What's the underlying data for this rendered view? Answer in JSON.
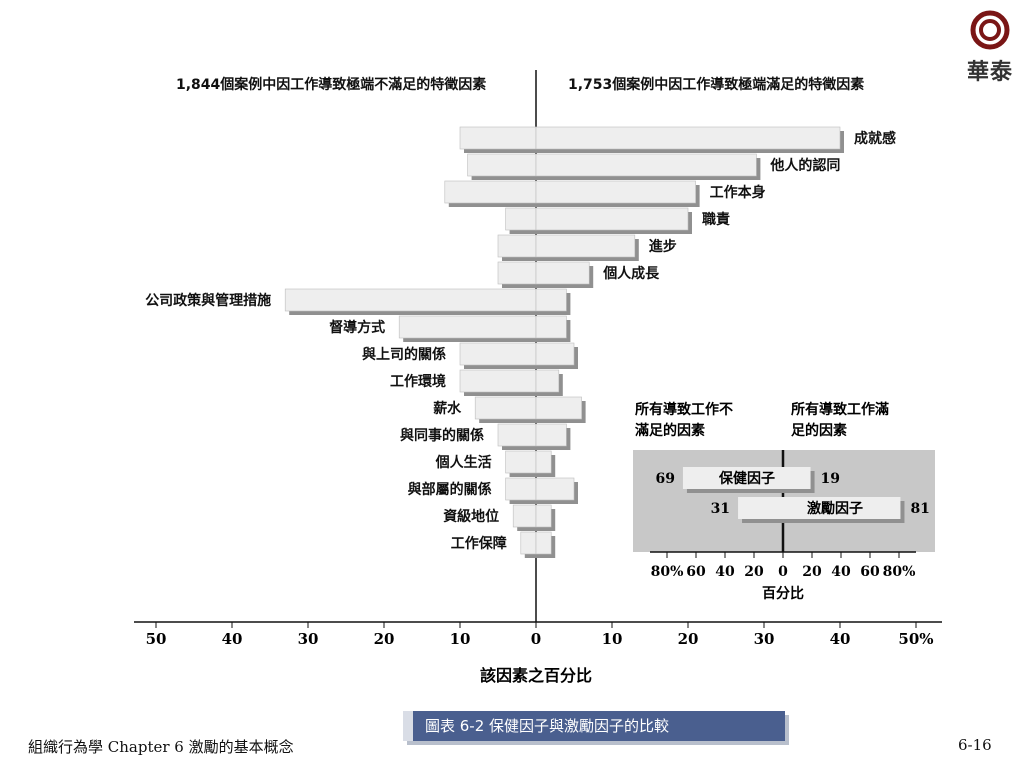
{
  "logo": {
    "text": "華泰",
    "icon": "concentric-ring-logo-icon"
  },
  "footer": {
    "left": "組織行為學 Chapter 6 激勵的基本概念",
    "page": "6-16"
  },
  "caption": "圖表 6-2 保健因子與激勵因子的比較",
  "colors": {
    "bar_fill": "#eeeeee",
    "bar_shadow": "#909090",
    "inset_bg": "#c8c8c8",
    "caption_bg": "#4a5f8f"
  },
  "chart_data": [
    {
      "type": "bar",
      "orientation": "horizontal-diverging",
      "left_title": "1,844個案例中因工作導致極端不滿足的特徵因素",
      "right_title": "1,753個案例中因工作導致極端滿足的特徵因素",
      "xlabel": "該因素之百分比",
      "left_ticks": [
        "50",
        "40",
        "30",
        "20",
        "10"
      ],
      "right_ticks": [
        "0",
        "10",
        "20",
        "30",
        "40",
        "50%"
      ],
      "xlim": [
        0,
        50
      ],
      "right_categories": [
        "成就感",
        "他人的認同",
        "工作本身",
        "職責",
        "進步",
        "個人成長"
      ],
      "left_categories": [
        "公司政策與管理措施",
        "督導方式",
        "與上司的關係",
        "工作環境",
        "薪水",
        "與同事的關係",
        "個人生活",
        "與部屬的關係",
        "資級地位",
        "工作保障"
      ],
      "categories": [
        "成就感",
        "他人的認同",
        "工作本身",
        "職責",
        "進步",
        "個人成長",
        "公司政策與管理措施",
        "督導方式",
        "與上司的關係",
        "工作環境",
        "薪水",
        "與同事的關係",
        "個人生活",
        "與部屬的關係",
        "資級地位",
        "工作保障"
      ],
      "series": [
        {
          "side": "left",
          "values": [
            10,
            9,
            12,
            4,
            5,
            5,
            33,
            18,
            10,
            10,
            8,
            5,
            4,
            4,
            3,
            2
          ]
        },
        {
          "side": "right",
          "values": [
            40,
            29,
            21,
            20,
            13,
            7,
            4,
            4,
            5,
            3,
            6,
            4,
            2,
            5,
            2,
            2
          ]
        }
      ]
    },
    {
      "type": "bar",
      "orientation": "horizontal-diverging",
      "left_title": "所有導致工作不滿足的因素",
      "right_title": "所有導致工作滿足的因素",
      "xlabel": "百分比",
      "left_ticks": [
        "80%",
        "60",
        "40",
        "20"
      ],
      "right_ticks": [
        "0",
        "20",
        "40",
        "60",
        "80%"
      ],
      "xlim": [
        0,
        80
      ],
      "categories": [
        "保健因子",
        "激勵因子"
      ],
      "left_values": [
        69,
        31
      ],
      "right_values": [
        19,
        81
      ],
      "left_labels": [
        "69",
        "31"
      ],
      "right_labels": [
        "19",
        "81"
      ]
    }
  ]
}
